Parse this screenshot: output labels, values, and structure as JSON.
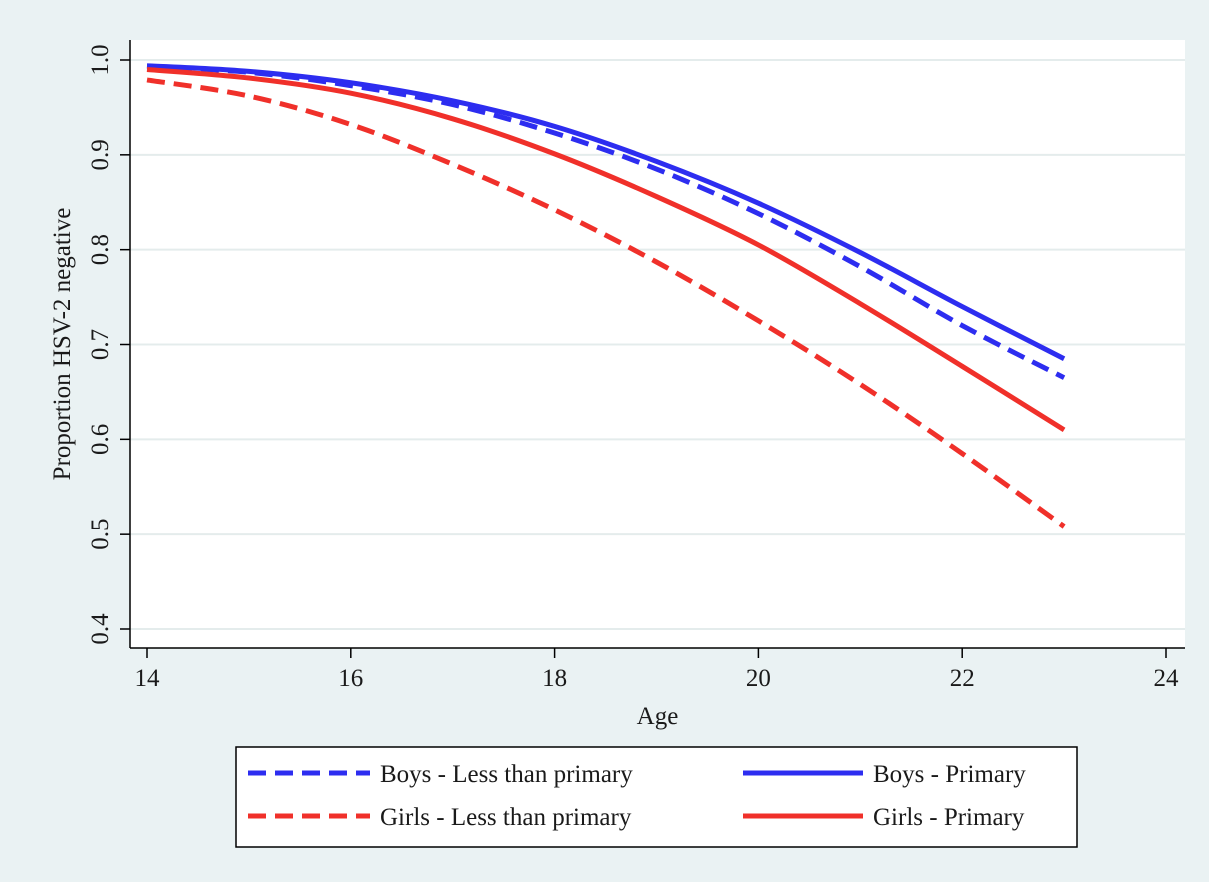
{
  "chart_data": {
    "type": "line",
    "title": "",
    "xlabel": "Age",
    "ylabel": "Proportion HSV-2 negative",
    "xlim": [
      14,
      24
    ],
    "ylim": [
      0.4,
      1.0
    ],
    "x_ticks": [
      "14",
      "16",
      "18",
      "20",
      "22",
      "24"
    ],
    "y_ticks": [
      "0.4",
      "0.5",
      "0.6",
      "0.7",
      "0.8",
      "0.9",
      "1.0"
    ],
    "grid": "horizontal",
    "legend_position": "bottom",
    "series": [
      {
        "name": "Boys - Less than primary",
        "color": "#2d2df0",
        "style": "dashed",
        "points": [
          [
            14,
            0.993
          ],
          [
            15,
            0.987
          ],
          [
            16,
            0.973
          ],
          [
            17,
            0.953
          ],
          [
            18,
            0.923
          ],
          [
            19,
            0.885
          ],
          [
            20,
            0.838
          ],
          [
            21,
            0.782
          ],
          [
            22,
            0.72
          ],
          [
            23,
            0.665
          ]
        ]
      },
      {
        "name": "Boys - Primary",
        "color": "#2d2df0",
        "style": "solid",
        "points": [
          [
            14,
            0.994
          ],
          [
            15,
            0.988
          ],
          [
            16,
            0.976
          ],
          [
            17,
            0.957
          ],
          [
            18,
            0.93
          ],
          [
            19,
            0.893
          ],
          [
            20,
            0.849
          ],
          [
            21,
            0.797
          ],
          [
            22,
            0.74
          ],
          [
            23,
            0.685
          ]
        ]
      },
      {
        "name": "Girls - Less than primary",
        "color": "#f0302a",
        "style": "dashed",
        "points": [
          [
            14,
            0.979
          ],
          [
            15,
            0.962
          ],
          [
            16,
            0.932
          ],
          [
            17,
            0.89
          ],
          [
            18,
            0.842
          ],
          [
            19,
            0.787
          ],
          [
            20,
            0.725
          ],
          [
            21,
            0.658
          ],
          [
            22,
            0.585
          ],
          [
            23,
            0.508
          ]
        ]
      },
      {
        "name": "Girls - Primary",
        "color": "#f0302a",
        "style": "solid",
        "points": [
          [
            14,
            0.99
          ],
          [
            15,
            0.981
          ],
          [
            16,
            0.965
          ],
          [
            17,
            0.938
          ],
          [
            18,
            0.901
          ],
          [
            19,
            0.856
          ],
          [
            20,
            0.805
          ],
          [
            21,
            0.743
          ],
          [
            22,
            0.677
          ],
          [
            23,
            0.61
          ]
        ]
      }
    ],
    "legend": [
      {
        "label": "Boys - Less than primary",
        "color": "#2d2df0",
        "style": "dashed"
      },
      {
        "label": "Boys - Primary",
        "color": "#2d2df0",
        "style": "solid"
      },
      {
        "label": "Girls - Less than primary",
        "color": "#f0302a",
        "style": "dashed"
      },
      {
        "label": "Girls - Primary",
        "color": "#f0302a",
        "style": "solid"
      }
    ]
  },
  "colors": {
    "outer_background": "#eaf2f3",
    "plot_background": "#ffffff",
    "gridline": "#e4ecec",
    "axis": "#000000"
  }
}
